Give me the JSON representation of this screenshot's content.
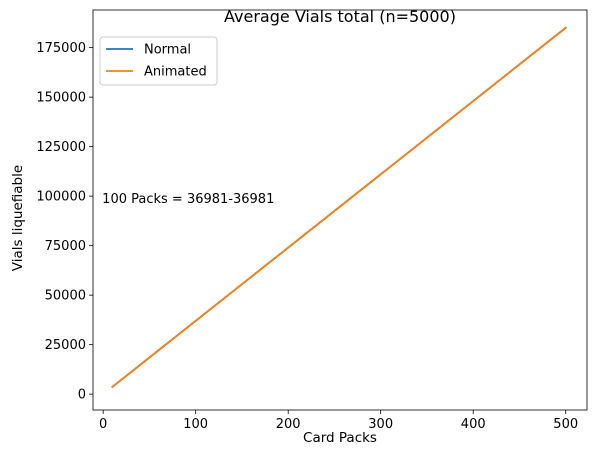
{
  "chart_data": {
    "type": "line",
    "title": "Average Vials total (n=5000)",
    "xlabel": "Card Packs",
    "ylabel": "Vials liquefiable",
    "xlim": [
      -11,
      523
    ],
    "ylim": [
      -8000,
      194000
    ],
    "x_ticks": [
      0,
      100,
      200,
      300,
      400,
      500
    ],
    "y_ticks": [
      0,
      25000,
      50000,
      75000,
      100000,
      125000,
      150000,
      175000
    ],
    "x_tick_labels": [
      "0",
      "100",
      "200",
      "300",
      "400",
      "500"
    ],
    "y_tick_labels": [
      "0",
      "25000",
      "50000",
      "75000",
      "100000",
      "125000",
      "150000",
      "175000"
    ],
    "grid": false,
    "legend_position": "upper-left",
    "series": [
      {
        "name": "Normal",
        "color": "#1f77b4",
        "x": [
          10,
          500
        ],
        "y": [
          3700,
          185000
        ]
      },
      {
        "name": "Animated",
        "color": "#ff7f0e",
        "x": [
          10,
          500
        ],
        "y": [
          3700,
          185000
        ]
      }
    ],
    "annotation": {
      "text": "100 Packs = 36981-36981",
      "x": 0,
      "y": 99000
    }
  }
}
